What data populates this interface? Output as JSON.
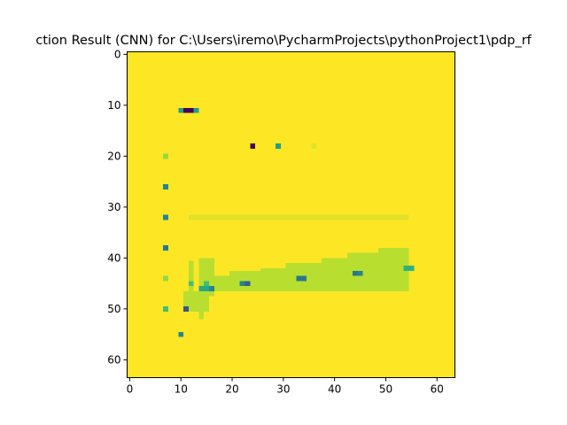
{
  "chart_data": {
    "type": "heatmap",
    "title": "ction Result (CNN) for C:\\Users\\iremo\\PycharmProjects\\pythonProject1\\pdp_rf",
    "xlabel": "",
    "ylabel": "",
    "xlim": [
      -0.5,
      63.5
    ],
    "ylim": [
      63.5,
      -0.5
    ],
    "x_ticks": [
      "0",
      "10",
      "20",
      "30",
      "40",
      "50",
      "60"
    ],
    "y_ticks": [
      "0",
      "10",
      "20",
      "30",
      "40",
      "50",
      "60"
    ],
    "grid": false,
    "colormap": "viridis",
    "value_range": [
      0,
      1
    ],
    "background_value": 1.0,
    "cells": [
      {
        "x": 10,
        "y": 11,
        "v": 0.55
      },
      {
        "x": 11,
        "y": 11,
        "v": 0.0
      },
      {
        "x": 12,
        "y": 11,
        "v": 0.0
      },
      {
        "x": 13,
        "y": 11,
        "v": 0.55
      },
      {
        "x": 24,
        "y": 18,
        "v": 0.0
      },
      {
        "x": 29,
        "y": 18,
        "v": 0.55
      },
      {
        "x": 36,
        "y": 18,
        "v": 0.96
      },
      {
        "x": 7,
        "y": 20,
        "v": 0.85
      },
      {
        "x": 7,
        "y": 26,
        "v": 0.45
      },
      {
        "x": 7,
        "y": 32,
        "v": 0.45
      },
      {
        "x": 7,
        "y": 38,
        "v": 0.4
      },
      {
        "x": 7,
        "y": 44,
        "v": 0.85
      },
      {
        "x": 7,
        "y": 50,
        "v": 0.7
      },
      {
        "x": 11,
        "y": 50,
        "v": 0.25
      },
      {
        "x": 10,
        "y": 55,
        "v": 0.45
      },
      {
        "x": 12,
        "y": 45,
        "v": 0.7
      },
      {
        "x": 15,
        "y": 45,
        "v": 0.7
      },
      {
        "x": 14,
        "y": 46,
        "v": 0.6
      },
      {
        "x": 15,
        "y": 46,
        "v": 0.6
      },
      {
        "x": 16,
        "y": 46,
        "v": 0.45
      },
      {
        "x": 22,
        "y": 45,
        "v": 0.45
      },
      {
        "x": 23,
        "y": 45,
        "v": 0.3
      },
      {
        "x": 33,
        "y": 44,
        "v": 0.4
      },
      {
        "x": 34,
        "y": 44,
        "v": 0.4
      },
      {
        "x": 44,
        "y": 43,
        "v": 0.4
      },
      {
        "x": 45,
        "y": 43,
        "v": 0.45
      },
      {
        "x": 54,
        "y": 42,
        "v": 0.65
      },
      {
        "x": 55,
        "y": 42,
        "v": 0.65
      }
    ],
    "regions": [
      {
        "x0": 12,
        "x1": 55,
        "y0": 32,
        "y1": 33,
        "v": 0.96
      },
      {
        "x0": 12,
        "x1": 13,
        "y0": 41,
        "y1": 48,
        "v": 0.9
      },
      {
        "x0": 14,
        "x1": 17,
        "y0": 40.5,
        "y1": 48,
        "v": 0.9
      },
      {
        "x0": 11,
        "x1": 16,
        "y0": 47,
        "y1": 51,
        "v": 0.9
      },
      {
        "x0": 14,
        "x1": 15,
        "y0": 50,
        "y1": 52.5,
        "v": 0.9
      },
      {
        "x0": 17,
        "x1": 20,
        "y0": 44,
        "y1": 47,
        "v": 0.9
      },
      {
        "x0": 20,
        "x1": 26,
        "y0": 43,
        "y1": 47,
        "v": 0.9
      },
      {
        "x0": 26,
        "x1": 31,
        "y0": 42.5,
        "y1": 47,
        "v": 0.9
      },
      {
        "x0": 31,
        "x1": 38,
        "y0": 41.5,
        "y1": 47,
        "v": 0.9
      },
      {
        "x0": 38,
        "x1": 43,
        "y0": 40.5,
        "y1": 47,
        "v": 0.9
      },
      {
        "x0": 43,
        "x1": 49,
        "y0": 39.5,
        "y1": 47,
        "v": 0.9
      },
      {
        "x0": 49,
        "x1": 55,
        "y0": 38.5,
        "y1": 47,
        "v": 0.9
      }
    ]
  }
}
